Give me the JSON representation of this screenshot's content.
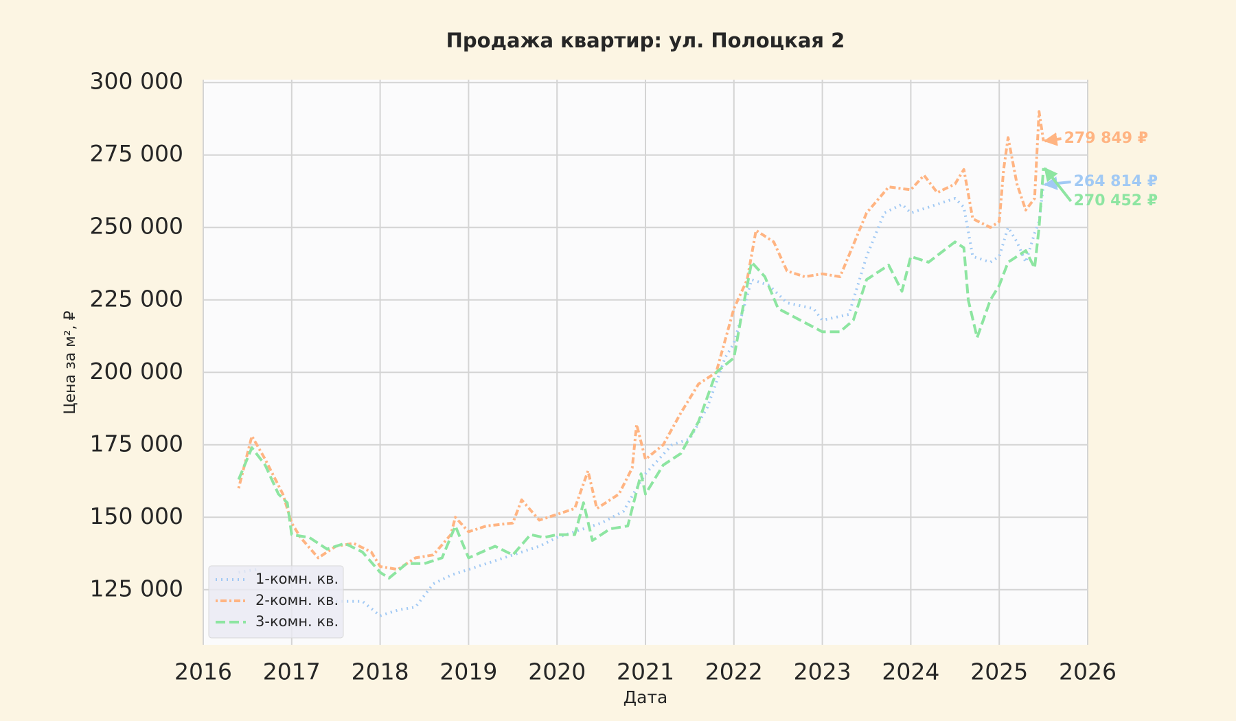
{
  "chart_data": {
    "type": "line",
    "title": "Продажа квартир: ул. Полоцкая 2",
    "x_label": "Дата",
    "y_label": "Цена за м², ₽",
    "xlim": [
      2016,
      2026
    ],
    "xticks": [
      2016,
      2017,
      2018,
      2019,
      2020,
      2021,
      2022,
      2023,
      2024,
      2025,
      2026
    ],
    "ylim": [
      106000,
      301000
    ],
    "yticks": [
      {
        "value": 125000,
        "label": "125 000"
      },
      {
        "value": 150000,
        "label": "150 000"
      },
      {
        "value": 175000,
        "label": "175 000"
      },
      {
        "value": 200000,
        "label": "200 000"
      },
      {
        "value": 225000,
        "label": "225 000"
      },
      {
        "value": 250000,
        "label": "250 000"
      },
      {
        "value": 275000,
        "label": "275 000"
      },
      {
        "value": 300000,
        "label": "300 000"
      }
    ],
    "grid": true,
    "legend": "lower left",
    "series": [
      {
        "name": "1-комн. кв.",
        "color": "#a1c9f4",
        "linestyle": "dotted",
        "x": [
          2016.4,
          2016.6,
          2017.0,
          2017.5,
          2017.8,
          2018.0,
          2018.2,
          2018.4,
          2018.6,
          2018.8,
          2019.0,
          2019.3,
          2019.5,
          2019.8,
          2020.0,
          2020.3,
          2020.5,
          2020.75,
          2020.9,
          2021.0,
          2021.3,
          2021.5,
          2021.7,
          2021.9,
          2022.0,
          2022.2,
          2022.4,
          2022.6,
          2022.9,
          2023.0,
          2023.3,
          2023.5,
          2023.7,
          2023.9,
          2024.0,
          2024.3,
          2024.5,
          2024.6,
          2024.7,
          2024.9,
          2025.0,
          2025.1,
          2025.2,
          2025.3,
          2025.4,
          2025.45,
          2025.5
        ],
        "values": [
          131000,
          132000,
          null,
          121000,
          121000,
          116000,
          118000,
          119000,
          127000,
          130000,
          132000,
          135000,
          137000,
          140000,
          143000,
          146000,
          148000,
          152000,
          160000,
          165000,
          175000,
          177000,
          188000,
          205000,
          210000,
          232000,
          230000,
          224000,
          222000,
          218000,
          220000,
          240000,
          255000,
          258000,
          255000,
          258000,
          260000,
          257000,
          240000,
          238000,
          240000,
          250000,
          245000,
          238000,
          248000,
          252000,
          264814
        ]
      },
      {
        "name": "2-комн. кв.",
        "color": "#ffb482",
        "linestyle": "dashdot",
        "x": [
          2016.4,
          2016.55,
          2016.7,
          2016.9,
          2017.0,
          2017.1,
          2017.3,
          2017.5,
          2017.7,
          2017.9,
          2018.0,
          2018.2,
          2018.4,
          2018.6,
          2018.8,
          2018.85,
          2019.0,
          2019.2,
          2019.5,
          2019.6,
          2019.8,
          2020.0,
          2020.2,
          2020.35,
          2020.45,
          2020.7,
          2020.85,
          2020.9,
          2021.0,
          2021.2,
          2021.4,
          2021.6,
          2021.8,
          2022.0,
          2022.15,
          2022.25,
          2022.45,
          2022.6,
          2022.8,
          2023.0,
          2023.2,
          2023.35,
          2023.5,
          2023.75,
          2024.0,
          2024.15,
          2024.3,
          2024.5,
          2024.6,
          2024.7,
          2024.9,
          2025.0,
          2025.05,
          2025.1,
          2025.2,
          2025.3,
          2025.4,
          2025.45,
          2025.5
        ],
        "values": [
          160000,
          178000,
          170000,
          158000,
          148000,
          143000,
          136000,
          140000,
          141000,
          138000,
          133000,
          132000,
          136000,
          137000,
          144000,
          150000,
          145000,
          147000,
          148000,
          156000,
          149000,
          151000,
          153000,
          166000,
          153000,
          158000,
          167000,
          182000,
          170000,
          175000,
          186000,
          196000,
          200000,
          222000,
          232000,
          249000,
          245000,
          235000,
          233000,
          234000,
          233000,
          244000,
          255000,
          264000,
          263000,
          268000,
          262000,
          265000,
          270000,
          253000,
          250000,
          252000,
          270000,
          281000,
          265000,
          256000,
          260000,
          290000,
          279849
        ]
      },
      {
        "name": "3-комн. кв.",
        "color": "#8de5a1",
        "linestyle": "dashed",
        "x": [
          2016.4,
          2016.55,
          2016.7,
          2016.85,
          2016.95,
          2017.0,
          2017.2,
          2017.4,
          2017.6,
          2017.8,
          2018.0,
          2018.1,
          2018.3,
          2018.5,
          2018.7,
          2018.85,
          2019.0,
          2019.3,
          2019.5,
          2019.7,
          2019.85,
          2020.0,
          2020.2,
          2020.3,
          2020.4,
          2020.6,
          2020.8,
          2020.95,
          2021.0,
          2021.2,
          2021.4,
          2021.6,
          2021.8,
          2022.0,
          2022.1,
          2022.2,
          2022.35,
          2022.5,
          2022.75,
          2023.0,
          2023.2,
          2023.35,
          2023.5,
          2023.75,
          2023.9,
          2024.0,
          2024.2,
          2024.5,
          2024.6,
          2024.65,
          2024.75,
          2024.9,
          2025.0,
          2025.1,
          2025.2,
          2025.3,
          2025.4,
          2025.45,
          2025.5
        ],
        "values": [
          163000,
          174000,
          168000,
          158000,
          155000,
          144000,
          143000,
          139000,
          141000,
          138000,
          131000,
          129000,
          134000,
          134000,
          136000,
          147000,
          136000,
          140000,
          137000,
          144000,
          143000,
          144000,
          144000,
          155000,
          142000,
          146000,
          147000,
          165000,
          158000,
          168000,
          172000,
          183000,
          200000,
          205000,
          222000,
          238000,
          233000,
          222000,
          218000,
          214000,
          214000,
          218000,
          232000,
          237000,
          228000,
          240000,
          238000,
          245000,
          243000,
          225000,
          212000,
          225000,
          230000,
          238000,
          240000,
          242000,
          236000,
          250000,
          270452
        ]
      }
    ],
    "annotations": [
      {
        "text": "279 849 ₽",
        "x": 2025.5,
        "y": 279849,
        "color": "#ffb482"
      },
      {
        "text": "264 814 ₽",
        "x": 2025.5,
        "y": 264814,
        "color": "#a1c9f4"
      },
      {
        "text": "270 452 ₽",
        "x": 2025.5,
        "y": 270452,
        "color": "#8de5a1"
      }
    ]
  }
}
